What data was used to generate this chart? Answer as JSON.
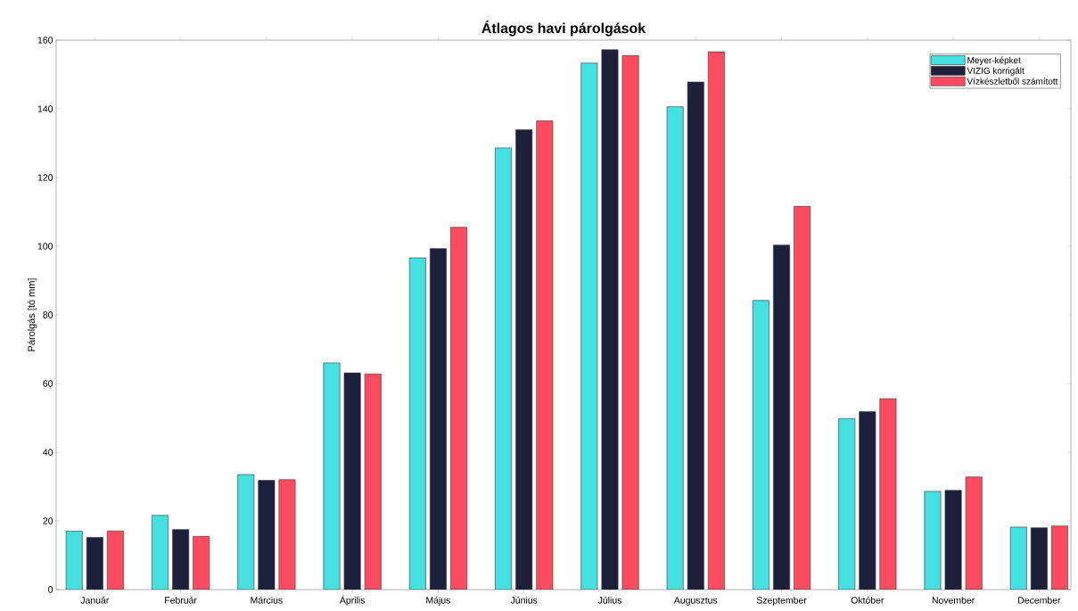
{
  "chart_data": {
    "type": "bar",
    "title": "Átlagos havi párolgások",
    "ylabel": "Párolgás [tó mm]",
    "categories": [
      "Január",
      "Február",
      "Március",
      "Április",
      "Május",
      "Június",
      "Július",
      "Augusztus",
      "Szeptember",
      "Október",
      "November",
      "December"
    ],
    "series": [
      {
        "name": "Meyer-képket",
        "color": "#45e1e1",
        "values": [
          17.0,
          21.6,
          33.5,
          66.0,
          96.6,
          128.6,
          153.3,
          140.6,
          84.2,
          49.8,
          28.6,
          18.2
        ]
      },
      {
        "name": "VIZIG korrigált",
        "color": "#1e1f3a",
        "values": [
          15.2,
          17.5,
          31.8,
          63.1,
          99.3,
          133.9,
          157.2,
          147.8,
          100.3,
          51.8,
          28.9,
          18.0
        ]
      },
      {
        "name": "Vízkészletből számított",
        "color": "#fe4b5f",
        "values": [
          17.1,
          15.5,
          32.0,
          62.8,
          105.5,
          136.5,
          155.5,
          156.6,
          111.6,
          55.6,
          32.8,
          18.5
        ]
      }
    ],
    "ylim": [
      0,
      160
    ],
    "yticks": [
      0,
      20,
      40,
      60,
      80,
      100,
      120,
      140,
      160
    ],
    "grid": false,
    "legend": "top right"
  }
}
